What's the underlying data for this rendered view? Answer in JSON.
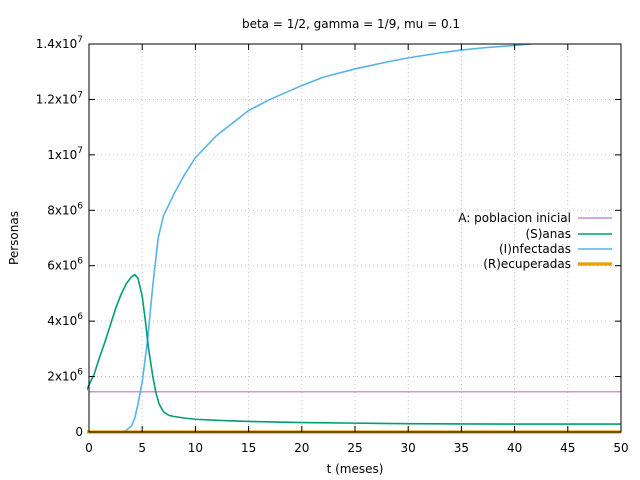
{
  "chart_data": {
    "type": "line",
    "title": "beta = 1/2, gamma = 1/9, mu = 0.1",
    "xlabel": "t (meses)",
    "ylabel": "Personas",
    "xlim": [
      0,
      50
    ],
    "ylim": [
      0,
      14000000
    ],
    "grid": true,
    "legend_position": "right-middle",
    "x_ticks": [
      {
        "v": 0,
        "label": "0"
      },
      {
        "v": 5,
        "label": "5"
      },
      {
        "v": 10,
        "label": "10"
      },
      {
        "v": 15,
        "label": "15"
      },
      {
        "v": 20,
        "label": "20"
      },
      {
        "v": 25,
        "label": "25"
      },
      {
        "v": 30,
        "label": "30"
      },
      {
        "v": 35,
        "label": "35"
      },
      {
        "v": 40,
        "label": "40"
      },
      {
        "v": 45,
        "label": "45"
      },
      {
        "v": 50,
        "label": "50"
      }
    ],
    "y_ticks": [
      {
        "v": 0,
        "base": "0",
        "exp": ""
      },
      {
        "v": 2000000,
        "base": "2x10",
        "exp": "6"
      },
      {
        "v": 4000000,
        "base": "4x10",
        "exp": "6"
      },
      {
        "v": 6000000,
        "base": "6x10",
        "exp": "6"
      },
      {
        "v": 8000000,
        "base": "8x10",
        "exp": "6"
      },
      {
        "v": 10000000,
        "base": "1x10",
        "exp": "7"
      },
      {
        "v": 12000000,
        "base": "1.2x10",
        "exp": "7"
      },
      {
        "v": 14000000,
        "base": "1.4x10",
        "exp": "7"
      }
    ],
    "series": [
      {
        "name": "A: poblacion inicial",
        "color": "#c070d8",
        "width": 1.2,
        "x": [
          0,
          50
        ],
        "y": [
          1450000,
          1450000
        ]
      },
      {
        "name": "(S)anas",
        "color": "#009e73",
        "width": 1.6,
        "x": [
          -0.3,
          0.5,
          1,
          1.5,
          2,
          2.5,
          3,
          3.5,
          4,
          4.3,
          4.6,
          5,
          5.3,
          5.6,
          6,
          6.3,
          6.6,
          7,
          7.5,
          8,
          9,
          10,
          12,
          15,
          20,
          25,
          30,
          35,
          40,
          45,
          50
        ],
        "y": [
          1450000,
          2100000,
          2700000,
          3250000,
          3850000,
          4450000,
          4950000,
          5350000,
          5600000,
          5680000,
          5550000,
          4900000,
          4000000,
          3000000,
          2000000,
          1400000,
          1000000,
          730000,
          600000,
          560000,
          500000,
          460000,
          420000,
          380000,
          340000,
          320000,
          300000,
          290000,
          285000,
          285000,
          285000
        ]
      },
      {
        "name": "(I)nfectadas",
        "color": "#56b4e9",
        "width": 1.6,
        "x": [
          3,
          3.5,
          4,
          4.3,
          4.6,
          5,
          5.5,
          6,
          6.5,
          7,
          8,
          9,
          10,
          12,
          15,
          17,
          20,
          22,
          25,
          28,
          30,
          33,
          35,
          37,
          40,
          41.5
        ],
        "y": [
          0,
          60000,
          220000,
          500000,
          1000000,
          1800000,
          3300000,
          5300000,
          7000000,
          7800000,
          8600000,
          9300000,
          9900000,
          10700000,
          11600000,
          12000000,
          12500000,
          12800000,
          13100000,
          13350000,
          13500000,
          13680000,
          13780000,
          13860000,
          13950000,
          14000000
        ]
      },
      {
        "name": "(R)ecuperadas",
        "color": "#e69f00",
        "width": 3.2,
        "x": [
          -0.3,
          50
        ],
        "y": [
          0,
          0
        ]
      }
    ]
  }
}
